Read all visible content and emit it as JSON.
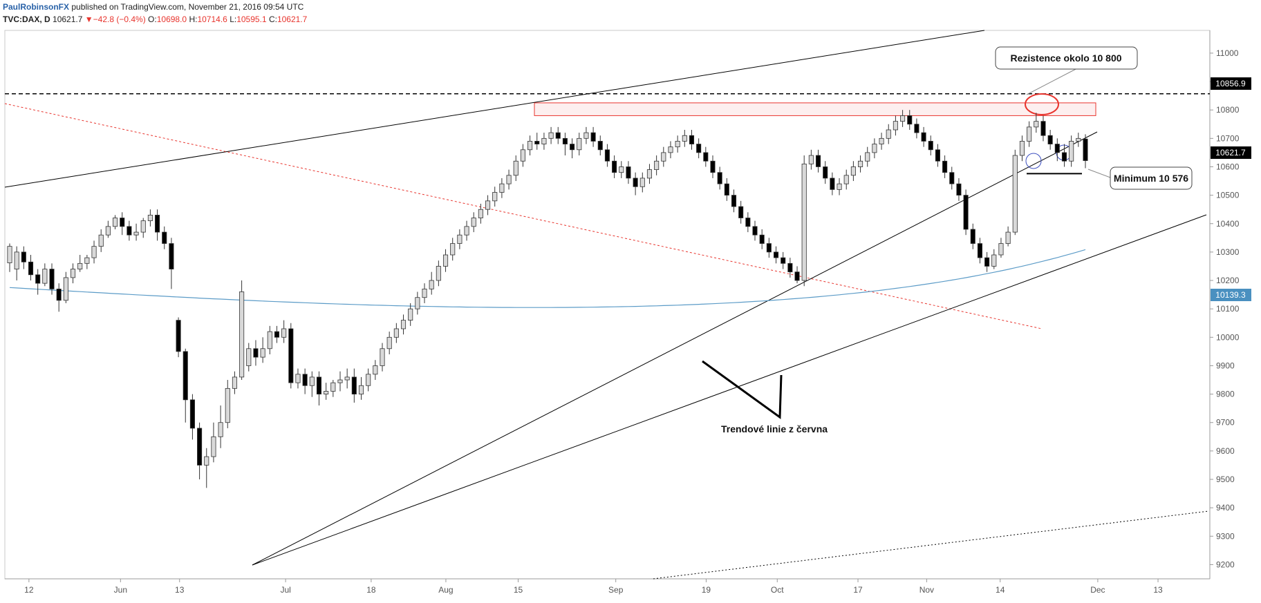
{
  "header": {
    "author": "PaulRobinsonFX",
    "published": "published on TradingView.com, November 21, 2016 09:54 UTC"
  },
  "ohlc": {
    "symbol": "TVC:DAX, D",
    "last": "10621.7",
    "change_arrow": "▼",
    "change": "−42.8 (−0.4%)",
    "o_label": "O:",
    "o": "10698.0",
    "h_label": "H:",
    "h": "10714.6",
    "l_label": "L:",
    "l": "10595.1",
    "c_label": "C:",
    "c": "10621.7"
  },
  "annotations": {
    "resistance": "Rezistence okolo 10 800",
    "minimum": "Minimum 10 576",
    "trendlines": "Trendové linie z června"
  },
  "price_labels": {
    "resistance_level": "10856.9",
    "last_price": "10621.7",
    "ma_value": "10139.3"
  },
  "colors": {
    "up_candle": "#d9d9d9",
    "down_candle": "#000000",
    "ma_line": "#5b9bc7",
    "red_line": "#e8342d",
    "last_price_bg": "#000000",
    "ma_label_bg": "#4a90c0",
    "resistance_label_bg": "#000000"
  },
  "chart_data": {
    "type": "candlestick",
    "symbol": "TVC:DAX",
    "interval": "D",
    "ylim": [
      9150,
      11080
    ],
    "y_ticks": [
      9200,
      9300,
      9400,
      9500,
      9600,
      9700,
      9800,
      9900,
      10000,
      10100,
      10200,
      10300,
      10400,
      10500,
      10600,
      10700,
      10800,
      10900,
      11000
    ],
    "x_ticks": [
      "12",
      "Jun",
      "13",
      "Jul",
      "18",
      "Aug",
      "15",
      "Sep",
      "19",
      "Oct",
      "17",
      "Nov",
      "14",
      "Dec",
      "13"
    ],
    "candles": [
      [
        10262,
        10320,
        10230,
        10330
      ],
      [
        10240,
        10300,
        10200,
        10320
      ],
      [
        10300,
        10265,
        10240,
        10320
      ],
      [
        10265,
        10220,
        10200,
        10290
      ],
      [
        10220,
        10190,
        10150,
        10240
      ],
      [
        10190,
        10240,
        10180,
        10260
      ],
      [
        10240,
        10170,
        10150,
        10260
      ],
      [
        10170,
        10130,
        10090,
        10190
      ],
      [
        10130,
        10210,
        10120,
        10230
      ],
      [
        10210,
        10240,
        10190,
        10260
      ],
      [
        10240,
        10260,
        10230,
        10290
      ],
      [
        10260,
        10280,
        10240,
        10290
      ],
      [
        10280,
        10320,
        10260,
        10340
      ],
      [
        10320,
        10360,
        10300,
        10380
      ],
      [
        10360,
        10390,
        10350,
        10410
      ],
      [
        10390,
        10420,
        10380,
        10430
      ],
      [
        10420,
        10390,
        10360,
        10440
      ],
      [
        10390,
        10360,
        10340,
        10410
      ],
      [
        10360,
        10370,
        10340,
        10400
      ],
      [
        10370,
        10410,
        10350,
        10420
      ],
      [
        10410,
        10430,
        10390,
        10450
      ],
      [
        10430,
        10370,
        10340,
        10450
      ],
      [
        10370,
        10330,
        10310,
        10390
      ],
      [
        10330,
        10240,
        10170,
        10350
      ],
      [
        10060,
        9950,
        9930,
        10070
      ],
      [
        9950,
        9780,
        9700,
        9960
      ],
      [
        9780,
        9680,
        9640,
        9800
      ],
      [
        9680,
        9550,
        9500,
        9700
      ],
      [
        9550,
        9580,
        9470,
        9610
      ],
      [
        9580,
        9650,
        9560,
        9700
      ],
      [
        9650,
        9700,
        9610,
        9760
      ],
      [
        9700,
        9820,
        9680,
        9850
      ],
      [
        9820,
        9860,
        9800,
        9880
      ],
      [
        9860,
        10160,
        9850,
        10200
      ],
      [
        9900,
        9960,
        9880,
        9980
      ],
      [
        9960,
        9930,
        9900,
        9990
      ],
      [
        9930,
        9960,
        9910,
        10000
      ],
      [
        9960,
        10020,
        9940,
        10040
      ],
      [
        10020,
        10000,
        9980,
        10040
      ],
      [
        10000,
        10030,
        9980,
        10060
      ],
      [
        10030,
        9840,
        9820,
        10050
      ],
      [
        9840,
        9870,
        9820,
        9890
      ],
      [
        9870,
        9830,
        9800,
        9890
      ],
      [
        9830,
        9860,
        9790,
        9880
      ],
      [
        9860,
        9800,
        9760,
        9880
      ],
      [
        9800,
        9810,
        9780,
        9840
      ],
      [
        9810,
        9840,
        9790,
        9850
      ],
      [
        9840,
        9850,
        9810,
        9880
      ],
      [
        9850,
        9860,
        9820,
        9890
      ],
      [
        9860,
        9800,
        9770,
        9890
      ],
      [
        9800,
        9830,
        9780,
        9860
      ],
      [
        9830,
        9870,
        9810,
        9890
      ],
      [
        9870,
        9900,
        9850,
        9920
      ],
      [
        9900,
        9960,
        9880,
        9980
      ],
      [
        9960,
        10000,
        9940,
        10020
      ],
      [
        10000,
        10030,
        9980,
        10050
      ],
      [
        10030,
        10060,
        10010,
        10080
      ],
      [
        10060,
        10100,
        10040,
        10120
      ],
      [
        10100,
        10140,
        10080,
        10160
      ],
      [
        10140,
        10170,
        10120,
        10190
      ],
      [
        10170,
        10200,
        10150,
        10230
      ],
      [
        10200,
        10250,
        10180,
        10270
      ],
      [
        10250,
        10290,
        10230,
        10310
      ],
      [
        10290,
        10330,
        10270,
        10350
      ],
      [
        10330,
        10360,
        10310,
        10380
      ],
      [
        10360,
        10390,
        10340,
        10410
      ],
      [
        10390,
        10420,
        10370,
        10440
      ],
      [
        10420,
        10450,
        10400,
        10470
      ],
      [
        10450,
        10480,
        10430,
        10500
      ],
      [
        10480,
        10510,
        10460,
        10530
      ],
      [
        10510,
        10540,
        10490,
        10560
      ],
      [
        10540,
        10570,
        10520,
        10590
      ],
      [
        10570,
        10620,
        10550,
        10640
      ],
      [
        10620,
        10660,
        10600,
        10680
      ],
      [
        10660,
        10690,
        10640,
        10710
      ],
      [
        10690,
        10680,
        10660,
        10720
      ],
      [
        10680,
        10700,
        10660,
        10720
      ],
      [
        10700,
        10720,
        10680,
        10740
      ],
      [
        10720,
        10700,
        10680,
        10740
      ],
      [
        10700,
        10680,
        10640,
        10720
      ],
      [
        10680,
        10660,
        10630,
        10700
      ],
      [
        10660,
        10700,
        10640,
        10720
      ],
      [
        10700,
        10720,
        10680,
        10740
      ],
      [
        10720,
        10690,
        10670,
        10740
      ],
      [
        10690,
        10660,
        10640,
        10710
      ],
      [
        10660,
        10620,
        10600,
        10680
      ],
      [
        10620,
        10580,
        10560,
        10640
      ],
      [
        10580,
        10600,
        10560,
        10620
      ],
      [
        10600,
        10560,
        10540,
        10620
      ],
      [
        10560,
        10530,
        10500,
        10580
      ],
      [
        10530,
        10560,
        10510,
        10580
      ],
      [
        10560,
        10590,
        10540,
        10610
      ],
      [
        10590,
        10620,
        10570,
        10640
      ],
      [
        10620,
        10650,
        10600,
        10670
      ],
      [
        10650,
        10670,
        10630,
        10690
      ],
      [
        10670,
        10690,
        10650,
        10710
      ],
      [
        10690,
        10710,
        10670,
        10730
      ],
      [
        10710,
        10680,
        10660,
        10730
      ],
      [
        10680,
        10650,
        10630,
        10700
      ],
      [
        10650,
        10620,
        10600,
        10670
      ],
      [
        10620,
        10580,
        10560,
        10640
      ],
      [
        10580,
        10540,
        10520,
        10600
      ],
      [
        10540,
        10500,
        10480,
        10560
      ],
      [
        10500,
        10460,
        10440,
        10520
      ],
      [
        10460,
        10420,
        10400,
        10480
      ],
      [
        10420,
        10390,
        10370,
        10440
      ],
      [
        10390,
        10360,
        10340,
        10410
      ],
      [
        10360,
        10330,
        10310,
        10380
      ],
      [
        10330,
        10300,
        10280,
        10350
      ],
      [
        10300,
        10280,
        10260,
        10320
      ],
      [
        10280,
        10260,
        10240,
        10300
      ],
      [
        10260,
        10230,
        10210,
        10280
      ],
      [
        10230,
        10200,
        10190,
        10250
      ],
      [
        10200,
        10610,
        10180,
        10640
      ],
      [
        10610,
        10640,
        10590,
        10660
      ],
      [
        10640,
        10600,
        10580,
        10660
      ],
      [
        10600,
        10560,
        10540,
        10620
      ],
      [
        10560,
        10520,
        10500,
        10580
      ],
      [
        10520,
        10540,
        10500,
        10560
      ],
      [
        10540,
        10570,
        10520,
        10590
      ],
      [
        10570,
        10600,
        10550,
        10620
      ],
      [
        10600,
        10620,
        10580,
        10640
      ],
      [
        10620,
        10650,
        10600,
        10670
      ],
      [
        10650,
        10680,
        10630,
        10700
      ],
      [
        10680,
        10700,
        10660,
        10720
      ],
      [
        10700,
        10730,
        10680,
        10750
      ],
      [
        10730,
        10760,
        10710,
        10780
      ],
      [
        10760,
        10780,
        10740,
        10800
      ],
      [
        10780,
        10750,
        10730,
        10800
      ],
      [
        10750,
        10720,
        10700,
        10770
      ],
      [
        10720,
        10690,
        10670,
        10740
      ],
      [
        10690,
        10660,
        10640,
        10710
      ],
      [
        10660,
        10620,
        10600,
        10680
      ],
      [
        10620,
        10580,
        10560,
        10640
      ],
      [
        10580,
        10540,
        10520,
        10600
      ],
      [
        10540,
        10500,
        10480,
        10560
      ],
      [
        10500,
        10380,
        10360,
        10520
      ],
      [
        10380,
        10330,
        10310,
        10400
      ],
      [
        10330,
        10280,
        10260,
        10350
      ],
      [
        10280,
        10250,
        10230,
        10300
      ],
      [
        10250,
        10290,
        10240,
        10310
      ],
      [
        10290,
        10330,
        10280,
        10350
      ],
      [
        10330,
        10370,
        10320,
        10390
      ],
      [
        10370,
        10640,
        10360,
        10660
      ],
      [
        10640,
        10690,
        10620,
        10710
      ],
      [
        10690,
        10740,
        10670,
        10760
      ],
      [
        10740,
        10760,
        10720,
        10790
      ],
      [
        10760,
        10710,
        10690,
        10780
      ],
      [
        10710,
        10680,
        10660,
        10730
      ],
      [
        10680,
        10650,
        10620,
        10700
      ],
      [
        10650,
        10620,
        10600,
        10680
      ],
      [
        10620,
        10690,
        10600,
        10710
      ],
      [
        10690,
        10700,
        10670,
        10720
      ],
      [
        10698,
        10621.7,
        10595.1,
        10714.6
      ]
    ],
    "moving_average": {
      "name": "",
      "last_value": 10139.3
    },
    "horizontal_levels": [
      10856.9,
      10576
    ],
    "resistance_zone": [
      10780,
      10825
    ]
  }
}
